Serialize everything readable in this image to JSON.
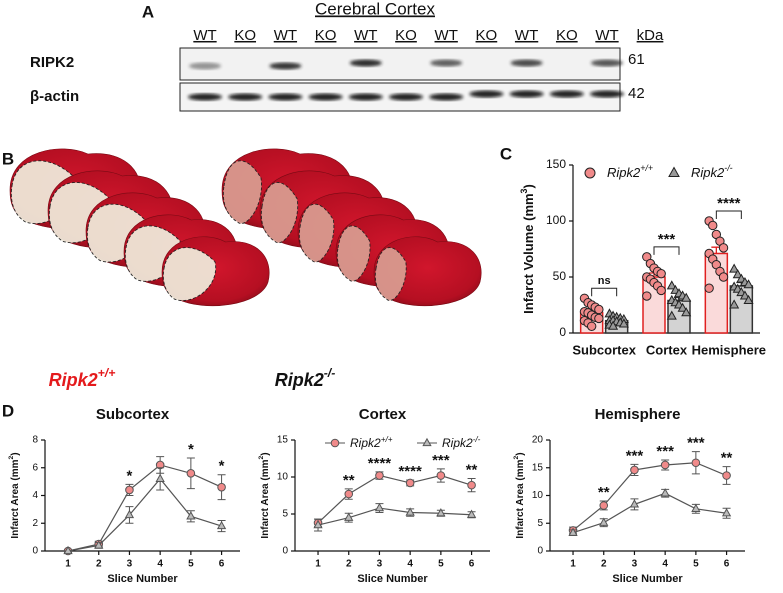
{
  "figure": {
    "panels": {
      "a": "A",
      "b": "B"
    },
    "blot": {
      "title": "Cerebral Cortex",
      "lanes": [
        "WT",
        "KO",
        "WT",
        "KO",
        "WT",
        "KO",
        "WT",
        "KO",
        "WT",
        "KO",
        "WT"
      ],
      "unit": "kDa",
      "rows": [
        {
          "label": "RIPK2",
          "kda": "61"
        },
        {
          "label": "β-actin",
          "kda": "42"
        }
      ]
    },
    "brains": [
      {
        "base": "Ripk2",
        "sup": "+/+",
        "color": "#e41a1c"
      },
      {
        "base": "Ripk2",
        "sup": "-/-",
        "color": "#111111"
      }
    ]
  },
  "chart_data": [
    {
      "type": "bar",
      "panel": "C",
      "ylabel": "Infarct Volume (mm",
      "ylabel_sup": "3",
      "ylabel_end": ")",
      "categories": [
        "Subcortex",
        "Cortex",
        "Hemisphere"
      ],
      "ylim": [
        0,
        150
      ],
      "yticks": [
        0,
        50,
        100,
        150
      ],
      "series": [
        {
          "name": "Ripk2",
          "name_sup": "+/+",
          "color": "#e02020",
          "fill": "#fadada",
          "point_fill": "#f08a8a",
          "marker": "circle",
          "values": [
            18,
            50,
            71
          ],
          "errors": [
            2.3,
            3.6,
            5.6
          ],
          "points": [
            [
              31,
              27,
              25,
              23,
              21,
              19,
              18,
              16,
              14,
              13,
              11,
              9,
              6
            ],
            [
              68,
              62,
              58,
              55,
              53,
              50,
              48,
              45,
              42,
              38,
              33
            ],
            [
              100,
              96,
              88,
              82,
              76,
              71,
              66,
              61,
              55,
              50,
              40
            ]
          ]
        },
        {
          "name": "Ripk2",
          "name_sup": "-/-",
          "color": "#333333",
          "fill": "#d3d3d3",
          "point_fill": "#9a9a9a",
          "marker": "triangle",
          "values": [
            11,
            29,
            42
          ],
          "errors": [
            1,
            2.7,
            3.1
          ],
          "points": [
            [
              17,
              15,
              14,
              13,
              12,
              11,
              11,
              10,
              9,
              8,
              7,
              6
            ],
            [
              42,
              38,
              35,
              33,
              31,
              29,
              27,
              25,
              22,
              18,
              15
            ],
            [
              57,
              52,
              48,
              45,
              43,
              41,
              39,
              36,
              33,
              29,
              25
            ]
          ]
        }
      ],
      "significance": [
        "ns",
        "***",
        "****"
      ]
    },
    {
      "type": "line",
      "panel": "D",
      "title": "Subcortex",
      "xlabel": "Slice Number",
      "ylabel": "Infarct Area (mm",
      "ylabel_sup": "2",
      "ylabel_end": ")",
      "x": [
        1,
        2,
        3,
        4,
        5,
        6
      ],
      "xlim": [
        0.25,
        6.6
      ],
      "xticks": [
        1,
        2,
        3,
        4,
        5,
        6
      ],
      "ylim": [
        0,
        8
      ],
      "yticks": [
        0,
        2,
        4,
        6,
        8
      ],
      "legend": false,
      "series": [
        {
          "name": "Ripk2",
          "name_sup": "+/+",
          "color": "#555555",
          "fill": "#f08a8a",
          "marker": "circle",
          "values": [
            0,
            0.5,
            4.4,
            6.2,
            5.6,
            4.6
          ],
          "errors": [
            0,
            0.2,
            0.4,
            0.6,
            1.1,
            0.9
          ]
        },
        {
          "name": "Ripk2",
          "name_sup": "-/-",
          "color": "#555555",
          "fill": "#bbbbbb",
          "marker": "triangle",
          "values": [
            0,
            0.4,
            2.6,
            5.2,
            2.5,
            1.8
          ],
          "errors": [
            0,
            0.2,
            0.6,
            0.8,
            0.4,
            0.4
          ]
        }
      ],
      "significance": [
        null,
        null,
        "*",
        null,
        "*",
        "*"
      ]
    },
    {
      "type": "line",
      "title": "Cortex",
      "xlabel": "Slice Number",
      "ylabel": "Infarct Area (mm",
      "ylabel_sup": "2",
      "ylabel_end": ")",
      "x": [
        1,
        2,
        3,
        4,
        5,
        6
      ],
      "xlim": [
        0.25,
        6.6
      ],
      "xticks": [
        1,
        2,
        3,
        4,
        5,
        6
      ],
      "ylim": [
        0,
        15
      ],
      "yticks": [
        0,
        5,
        10,
        15
      ],
      "legend": true,
      "series": [
        {
          "name": "Ripk2",
          "name_sup": "+/+",
          "color": "#555555",
          "fill": "#f08a8a",
          "marker": "circle",
          "values": [
            3.8,
            7.7,
            10.2,
            9.2,
            10.2,
            8.9
          ],
          "errors": [
            0.5,
            0.7,
            0.5,
            0.4,
            0.9,
            0.9
          ]
        },
        {
          "name": "Ripk2",
          "name_sup": "-/-",
          "color": "#555555",
          "fill": "#bbbbbb",
          "marker": "triangle",
          "values": [
            3.5,
            4.5,
            5.8,
            5.2,
            5.1,
            4.9
          ],
          "errors": [
            0.8,
            0.6,
            0.6,
            0.5,
            0.4,
            0.4
          ]
        }
      ],
      "significance": [
        null,
        "**",
        "****",
        "****",
        "***",
        "**"
      ]
    },
    {
      "type": "line",
      "title": "Hemisphere",
      "xlabel": "Slice Number",
      "ylabel": "Infarct Area (mm",
      "ylabel_sup": "2",
      "ylabel_end": ")",
      "x": [
        1,
        2,
        3,
        4,
        5,
        6
      ],
      "xlim": [
        0.25,
        6.6
      ],
      "xticks": [
        1,
        2,
        3,
        4,
        5,
        6
      ],
      "ylim": [
        0,
        20
      ],
      "yticks": [
        0,
        5,
        10,
        15,
        20
      ],
      "legend": false,
      "series": [
        {
          "name": "Ripk2",
          "name_sup": "+/+",
          "color": "#555555",
          "fill": "#f08a8a",
          "marker": "circle",
          "values": [
            3.7,
            8.2,
            14.6,
            15.5,
            15.9,
            13.6
          ],
          "errors": [
            0.6,
            0.8,
            1,
            0.9,
            2,
            1.6
          ]
        },
        {
          "name": "Ripk2",
          "name_sup": "-/-",
          "color": "#555555",
          "fill": "#bbbbbb",
          "marker": "triangle",
          "values": [
            3.3,
            5.1,
            8.4,
            10.4,
            7.6,
            6.8
          ],
          "errors": [
            0.5,
            0.7,
            1,
            0.7,
            0.8,
            0.9
          ]
        }
      ],
      "significance": [
        null,
        "**",
        "***",
        "***",
        "***",
        "**"
      ]
    }
  ]
}
